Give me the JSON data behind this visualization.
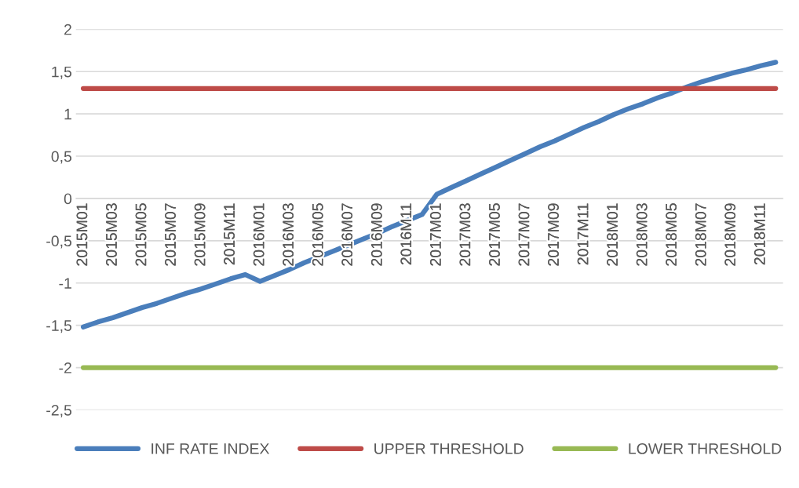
{
  "chart_data": {
    "type": "line",
    "categories": [
      "2015M01",
      null,
      "2015M03",
      null,
      "2015M05",
      null,
      "2015M07",
      null,
      "2015M09",
      null,
      "2015M11",
      null,
      "2016M01",
      null,
      "2016M03",
      null,
      "2016M05",
      null,
      "2016M07",
      null,
      "2016M09",
      null,
      "2016M11",
      null,
      "2017M01",
      null,
      "2017M03",
      null,
      "2017M05",
      null,
      "2017M07",
      null,
      "2017M09",
      null,
      "2017M11",
      null,
      "2018M01",
      null,
      "2018M03",
      null,
      "2018M05",
      null,
      "2018M07",
      null,
      "2018M09",
      null,
      "2018M11",
      null
    ],
    "series": [
      {
        "name": "INF RATE INDEX",
        "color": "#4a7ebb",
        "values": [
          -1.52,
          -1.46,
          -1.41,
          -1.35,
          -1.29,
          -1.24,
          -1.18,
          -1.12,
          -1.07,
          -1.01,
          -0.95,
          -0.9,
          -0.98,
          -0.91,
          -0.84,
          -0.76,
          -0.69,
          -0.62,
          -0.55,
          -0.48,
          -0.41,
          -0.33,
          -0.26,
          -0.19,
          0.05,
          0.13,
          0.21,
          0.29,
          0.37,
          0.45,
          0.53,
          0.61,
          0.68,
          0.76,
          0.84,
          0.91,
          0.99,
          1.06,
          1.12,
          1.19,
          1.25,
          1.32,
          1.38,
          1.43,
          1.48,
          1.52,
          1.57,
          1.61
        ]
      },
      {
        "name": "UPPER THRESHOLD",
        "color": "#be4b48",
        "values": [
          1.3,
          1.3,
          1.3,
          1.3,
          1.3,
          1.3,
          1.3,
          1.3,
          1.3,
          1.3,
          1.3,
          1.3,
          1.3,
          1.3,
          1.3,
          1.3,
          1.3,
          1.3,
          1.3,
          1.3,
          1.3,
          1.3,
          1.3,
          1.3,
          1.3,
          1.3,
          1.3,
          1.3,
          1.3,
          1.3,
          1.3,
          1.3,
          1.3,
          1.3,
          1.3,
          1.3,
          1.3,
          1.3,
          1.3,
          1.3,
          1.3,
          1.3,
          1.3,
          1.3,
          1.3,
          1.3,
          1.3,
          1.3
        ]
      },
      {
        "name": "LOWER THRESHOLD",
        "color": "#98b954",
        "values": [
          -2,
          -2,
          -2,
          -2,
          -2,
          -2,
          -2,
          -2,
          -2,
          -2,
          -2,
          -2,
          -2,
          -2,
          -2,
          -2,
          -2,
          -2,
          -2,
          -2,
          -2,
          -2,
          -2,
          -2,
          -2,
          -2,
          -2,
          -2,
          -2,
          -2,
          -2,
          -2,
          -2,
          -2,
          -2,
          -2,
          -2,
          -2,
          -2,
          -2,
          -2,
          -2,
          -2,
          -2,
          -2,
          -2,
          -2,
          -2
        ]
      }
    ],
    "ylim": [
      -2.5,
      2
    ],
    "yticks": [
      {
        "value": -2.5,
        "label": "-2,5"
      },
      -2,
      {
        "value": -1.5,
        "label": "-1,5"
      },
      -1,
      {
        "value": -0.5,
        "label": "-0,5"
      },
      0,
      {
        "value": 0.5,
        "label": "0,5"
      },
      1,
      {
        "value": 1.5,
        "label": "1,5"
      },
      2
    ],
    "grid": "y",
    "legend": "bottom",
    "marker": "none",
    "line_style": "solid"
  }
}
